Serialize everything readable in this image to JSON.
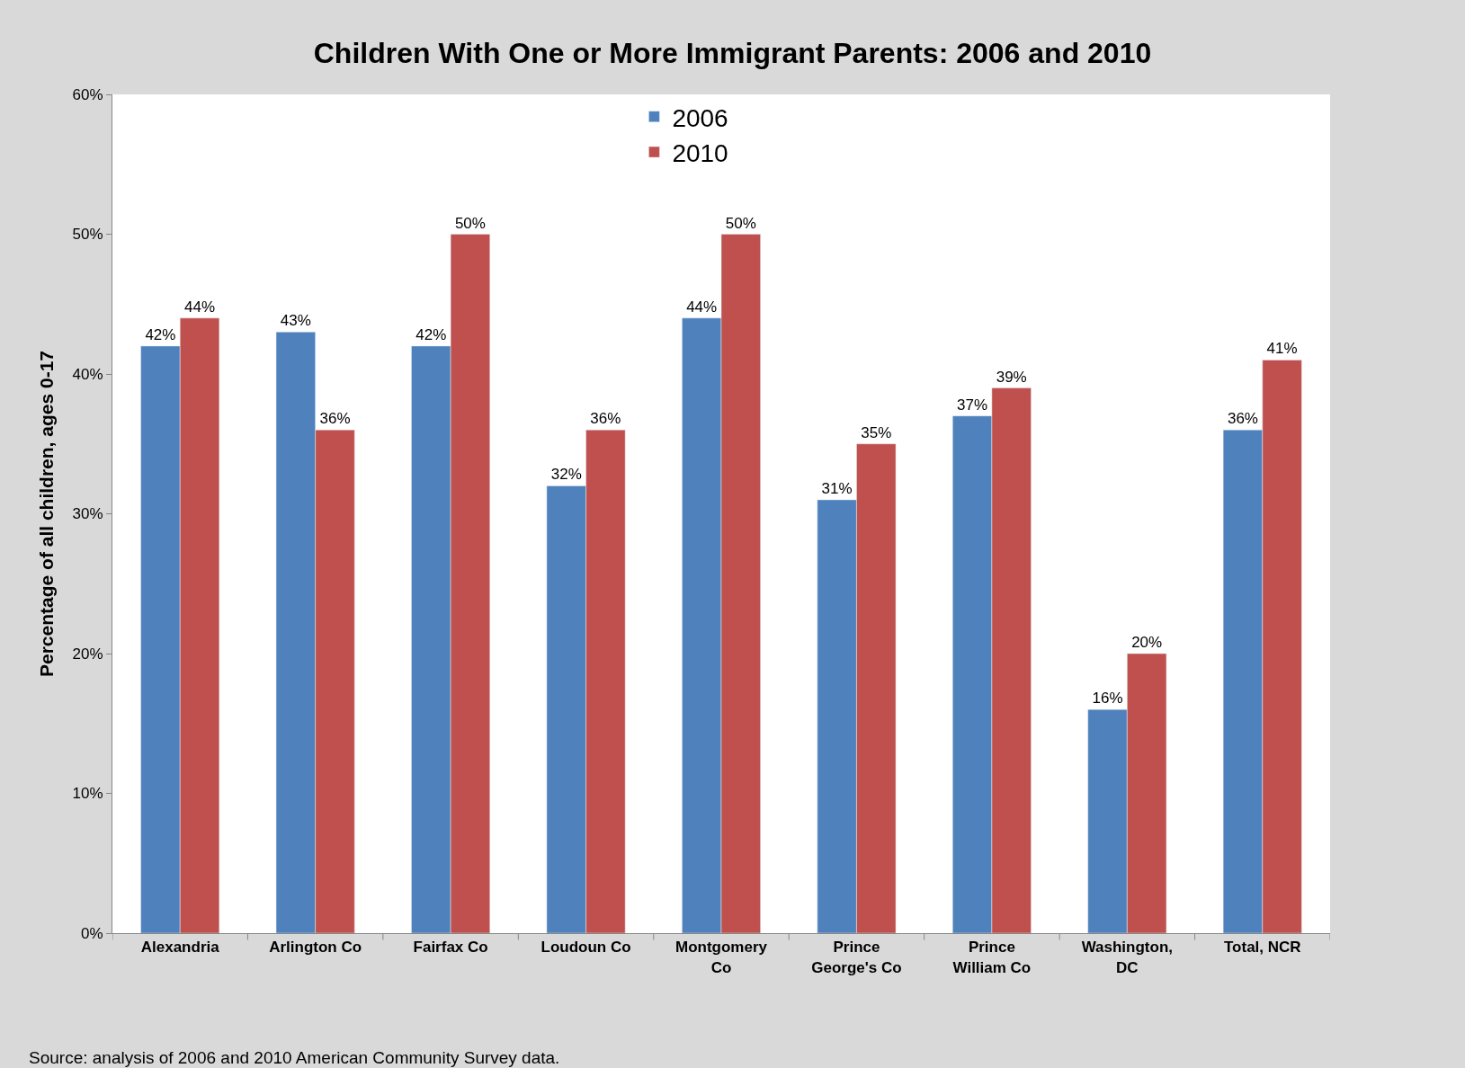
{
  "chart_data": {
    "type": "bar",
    "title": "Children With One or More Immigrant Parents: 2006 and 2010",
    "ylabel": "Percentage of all children, ages 0-17",
    "categories": [
      "Alexandria",
      "Arlington Co",
      "Fairfax Co",
      "Loudoun Co",
      "Montgomery Co",
      "Prince George's Co",
      "Prince William Co",
      "Washington, DC",
      "Total, NCR"
    ],
    "series": [
      {
        "name": "2006",
        "color": "#4f81bd",
        "values": [
          42,
          43,
          42,
          32,
          44,
          31,
          37,
          16,
          36
        ],
        "value_labels": [
          "42%",
          "43%",
          "42%",
          "32%",
          "44%",
          "31%",
          "37%",
          "16%",
          "36%"
        ]
      },
      {
        "name": "2010",
        "color": "#c0504d",
        "values": [
          44,
          36,
          50,
          36,
          50,
          35,
          39,
          20,
          41
        ],
        "value_labels": [
          "44%",
          "36%",
          "50%",
          "36%",
          "50%",
          "35%",
          "39%",
          "20%",
          "41%"
        ]
      }
    ],
    "ylim": [
      0,
      60
    ],
    "yticks": [
      {
        "value": 0,
        "label": "0%"
      },
      {
        "value": 10,
        "label": "10%"
      },
      {
        "value": 20,
        "label": "20%"
      },
      {
        "value": 30,
        "label": "30%"
      },
      {
        "value": 40,
        "label": "40%"
      },
      {
        "value": 50,
        "label": "50%"
      },
      {
        "value": 60,
        "label": "60%"
      }
    ],
    "legend": "top",
    "annotations": [
      "Source: analysis of 2006 and 2010 American Community Survey data."
    ]
  }
}
